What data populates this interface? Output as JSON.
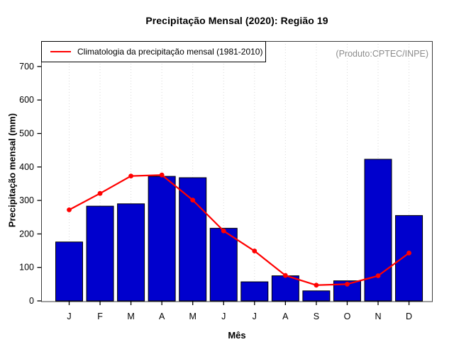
{
  "title": "Precipitação Mensal (2020): Região 19",
  "annotation": "(Produto:CPTEC/INPE)",
  "legend": {
    "label": "Climatologia da precipitação mensal (1981-2010)"
  },
  "axes": {
    "x_label": "Mês",
    "y_label": "Precipitação mensal (mm)",
    "y_ticks": [
      0,
      100,
      200,
      300,
      400,
      500,
      600,
      700
    ]
  },
  "colors": {
    "bar_fill": "#0000cd",
    "bar_border": "#000000",
    "line": "#ff0000",
    "grid": "#d8d8d8",
    "frame": "#3c3c3c",
    "axis": "#000000",
    "annotation_text": "#8c8c8c"
  },
  "chart_data": {
    "type": "bar",
    "title": "Precipitação Mensal (2020): Região 19",
    "xlabel": "Mês",
    "ylabel": "Precipitação mensal (mm)",
    "categories": [
      "J",
      "F",
      "M",
      "A",
      "M",
      "J",
      "J",
      "A",
      "S",
      "O",
      "N",
      "D"
    ],
    "series": [
      {
        "name": "Precipitação mensal (2020)",
        "type": "bar",
        "values": [
          176,
          283,
          290,
          372,
          368,
          217,
          57,
          75,
          30,
          60,
          423,
          255
        ]
      },
      {
        "name": "Climatologia da precipitação mensal (1981-2010)",
        "type": "line",
        "values": [
          272,
          321,
          373,
          376,
          301,
          209,
          149,
          76,
          47,
          50,
          75,
          143
        ]
      }
    ],
    "ylim": [
      0,
      700
    ],
    "grid": "vertical-dotted",
    "legend_position": "top-left",
    "annotation": "(Produto:CPTEC/INPE)"
  }
}
